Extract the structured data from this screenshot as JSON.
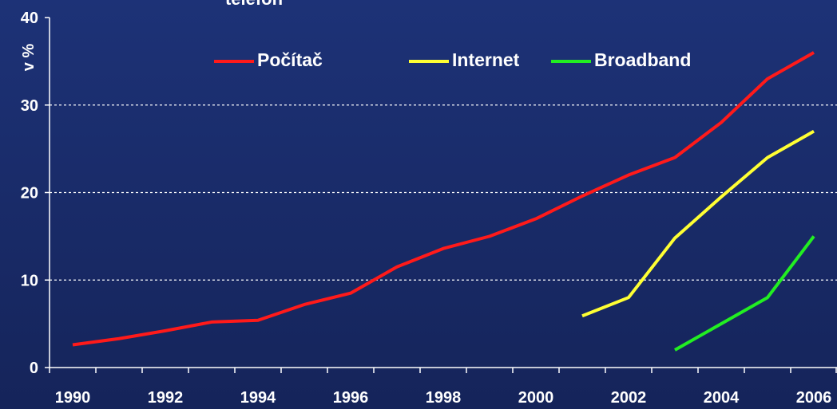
{
  "chart_data": {
    "type": "line",
    "title": "telefon",
    "y_label": "v %",
    "categories": [
      "1990",
      null,
      "1992",
      null,
      "1994",
      null,
      "1996",
      null,
      "1998",
      null,
      "2000",
      null,
      "2002",
      null,
      "2004",
      null,
      "2006"
    ],
    "series": [
      {
        "name": "Počítač",
        "color": "#ff1a1a",
        "values": [
          2.6,
          3.3,
          4.2,
          5.2,
          5.4,
          7.2,
          8.5,
          11.5,
          13.6,
          15,
          17,
          19.6,
          22,
          24,
          28,
          33,
          36
        ]
      },
      {
        "name": "Internet",
        "color": "#ffff33",
        "values": [
          null,
          null,
          null,
          null,
          null,
          null,
          null,
          null,
          null,
          null,
          null,
          5.9,
          8,
          14.8,
          19.5,
          24,
          27
        ]
      },
      {
        "name": "Broadband",
        "color": "#22ee22",
        "values": [
          null,
          null,
          null,
          null,
          null,
          null,
          null,
          null,
          null,
          null,
          null,
          null,
          null,
          2,
          5,
          8,
          15
        ]
      }
    ],
    "ylim": [
      0,
      40
    ],
    "yticks": [
      0,
      10,
      20,
      30,
      40
    ],
    "grid": true,
    "legend": "top"
  }
}
